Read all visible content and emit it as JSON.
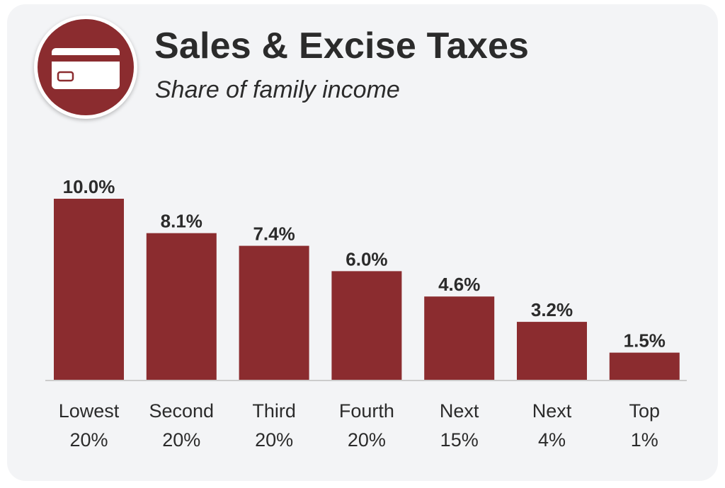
{
  "header": {
    "title": "Sales & Excise Taxes",
    "subtitle": "Share of family income",
    "icon": "credit-card-icon"
  },
  "colors": {
    "bar": "#8b2c2f",
    "badge": "#8b2c2f",
    "background": "#f3f4f6",
    "text": "#2b2b2b",
    "baseline": "#cccccc"
  },
  "chart_data": {
    "type": "bar",
    "title": "Sales & Excise Taxes",
    "subtitle": "Share of family income",
    "categories": [
      [
        "Lowest",
        "20%"
      ],
      [
        "Second",
        "20%"
      ],
      [
        "Third",
        "20%"
      ],
      [
        "Fourth",
        "20%"
      ],
      [
        "Next",
        "15%"
      ],
      [
        "Next",
        "4%"
      ],
      [
        "Top",
        "1%"
      ]
    ],
    "values": [
      10.0,
      8.1,
      7.4,
      6.0,
      4.6,
      3.2,
      1.5
    ],
    "data_labels": [
      "10.0%",
      "8.1%",
      "7.4%",
      "6.0%",
      "4.6%",
      "3.2%",
      "1.5%"
    ],
    "unit": "%",
    "grid": false,
    "legend": "none"
  }
}
